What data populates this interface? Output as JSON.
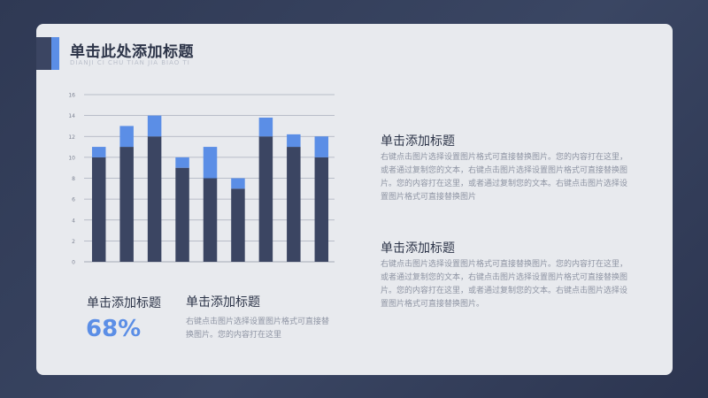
{
  "slide": {
    "title": "单击此处添加标题",
    "subtitle": "DIANJI CI CHU TIAN JIA BIAO TI",
    "colors": {
      "accent": "#5b8ee6",
      "dark": "#3b4562",
      "card": "#e8eaee",
      "background": "#323c56"
    }
  },
  "chart_data": {
    "type": "bar",
    "stacked": true,
    "categories": [
      "",
      "",
      "",
      "",
      "",
      "",
      "",
      "",
      ""
    ],
    "series": [
      {
        "values": [
          10,
          11,
          12,
          9,
          8,
          7,
          12,
          11,
          10
        ],
        "color": "#3b4562"
      },
      {
        "values": [
          1,
          2,
          2,
          1,
          3,
          1,
          1.8,
          1.2,
          2
        ],
        "color": "#5b8ee6"
      }
    ],
    "ylim": [
      0,
      16
    ],
    "yticks": [
      "0",
      "2",
      "4",
      "6",
      "8",
      "10",
      "12",
      "14",
      "16"
    ],
    "grid": true
  },
  "stat": {
    "title": "单击添加标题",
    "value": "68%"
  },
  "bottom_block": {
    "title": "单击添加标题",
    "body": "右键点击图片选择设置图片格式可直接替换图片。您的内容打在这里"
  },
  "right_block_1": {
    "title": "单击添加标题",
    "body": "右键点击图片选择设置图片格式可直接替换图片。您的内容打在这里，或者通过复制您的文本，右键点击图片选择设置图片格式可直接替换图片。您的内容打在这里，或者通过复制您的文本。右键点击图片选择设置图片格式可直接替换图片"
  },
  "right_block_2": {
    "title": "单击添加标题",
    "body": "右键点击图片选择设置图片格式可直接替换图片。您的内容打在这里，或者通过复制您的文本，右键点击图片选择设置图片格式可直接替换图片。您的内容打在这里，或者通过复制您的文本。右键点击图片选择设置图片格式可直接替换图片。"
  }
}
